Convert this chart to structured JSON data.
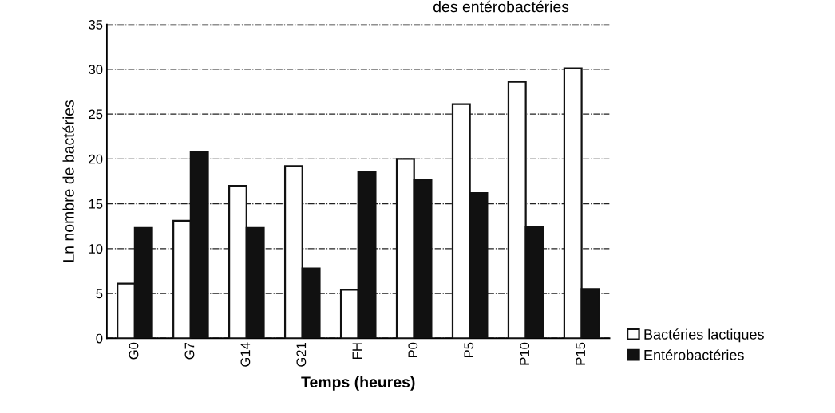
{
  "chart_data": {
    "type": "bar",
    "title": "des entérobactéries",
    "xlabel": "Temps (heures)",
    "ylabel": "Ln nombre de bactéries",
    "categories": [
      "G0",
      "G7",
      "G14",
      "G21",
      "FH",
      "P0",
      "P5",
      "P10",
      "P15"
    ],
    "series": [
      {
        "name": "Bactéries lactiques",
        "color": "#ffffff",
        "values": [
          6.1,
          13.1,
          17.0,
          19.2,
          5.4,
          20.0,
          26.1,
          28.6,
          30.1
        ]
      },
      {
        "name": "Entérobactéries",
        "color": "#111111",
        "values": [
          12.3,
          20.8,
          12.3,
          7.8,
          18.6,
          17.7,
          16.2,
          12.4,
          5.5
        ]
      }
    ],
    "ylim": [
      0,
      35
    ],
    "yticks": [
      0,
      5,
      10,
      15,
      20,
      25,
      30,
      35
    ],
    "grid": "y",
    "legend": "bottom right"
  }
}
